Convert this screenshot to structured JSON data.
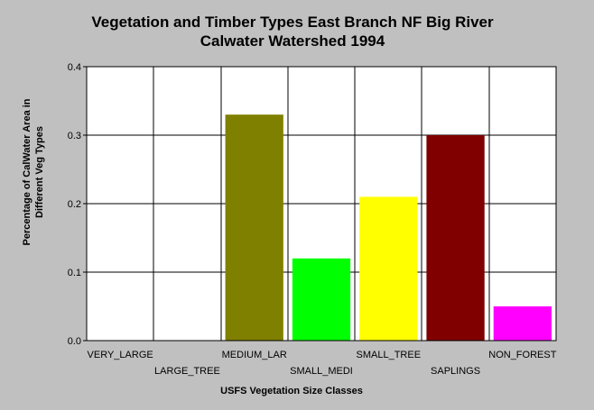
{
  "chart_data": {
    "type": "bar",
    "title": "Vegetation and Timber Types East Branch NF Big River",
    "subtitle": "Calwater Watershed 1994",
    "xlabel": "USFS Vegetation Size Classes",
    "ylabel_line1": "Percentage of CalWater Area in",
    "ylabel_line2": "Different Veg Types",
    "categories": [
      "VERY_LARGE",
      "LARGE_TREE",
      "MEDIUM_LAR",
      "SMALL_MEDI",
      "SMALL_TREE",
      "SAPLINGS",
      "NON_FOREST"
    ],
    "values": [
      0,
      0,
      0.33,
      0.12,
      0.21,
      0.3,
      0.05
    ],
    "colors": [
      "#808000",
      "#808000",
      "#808000",
      "#00ff00",
      "#ffff00",
      "#800000",
      "#ff00ff"
    ],
    "ylim": [
      0,
      0.4
    ],
    "yticks": [
      0.0,
      0.1,
      0.2,
      0.3,
      0.4
    ],
    "ytick_labels": [
      "0.0",
      "0.1",
      "0.2",
      "0.3",
      "0.4"
    ],
    "grid": true,
    "legend": "none",
    "background_color": "#c0c0c0",
    "plot_background_color": "#ffffff"
  }
}
